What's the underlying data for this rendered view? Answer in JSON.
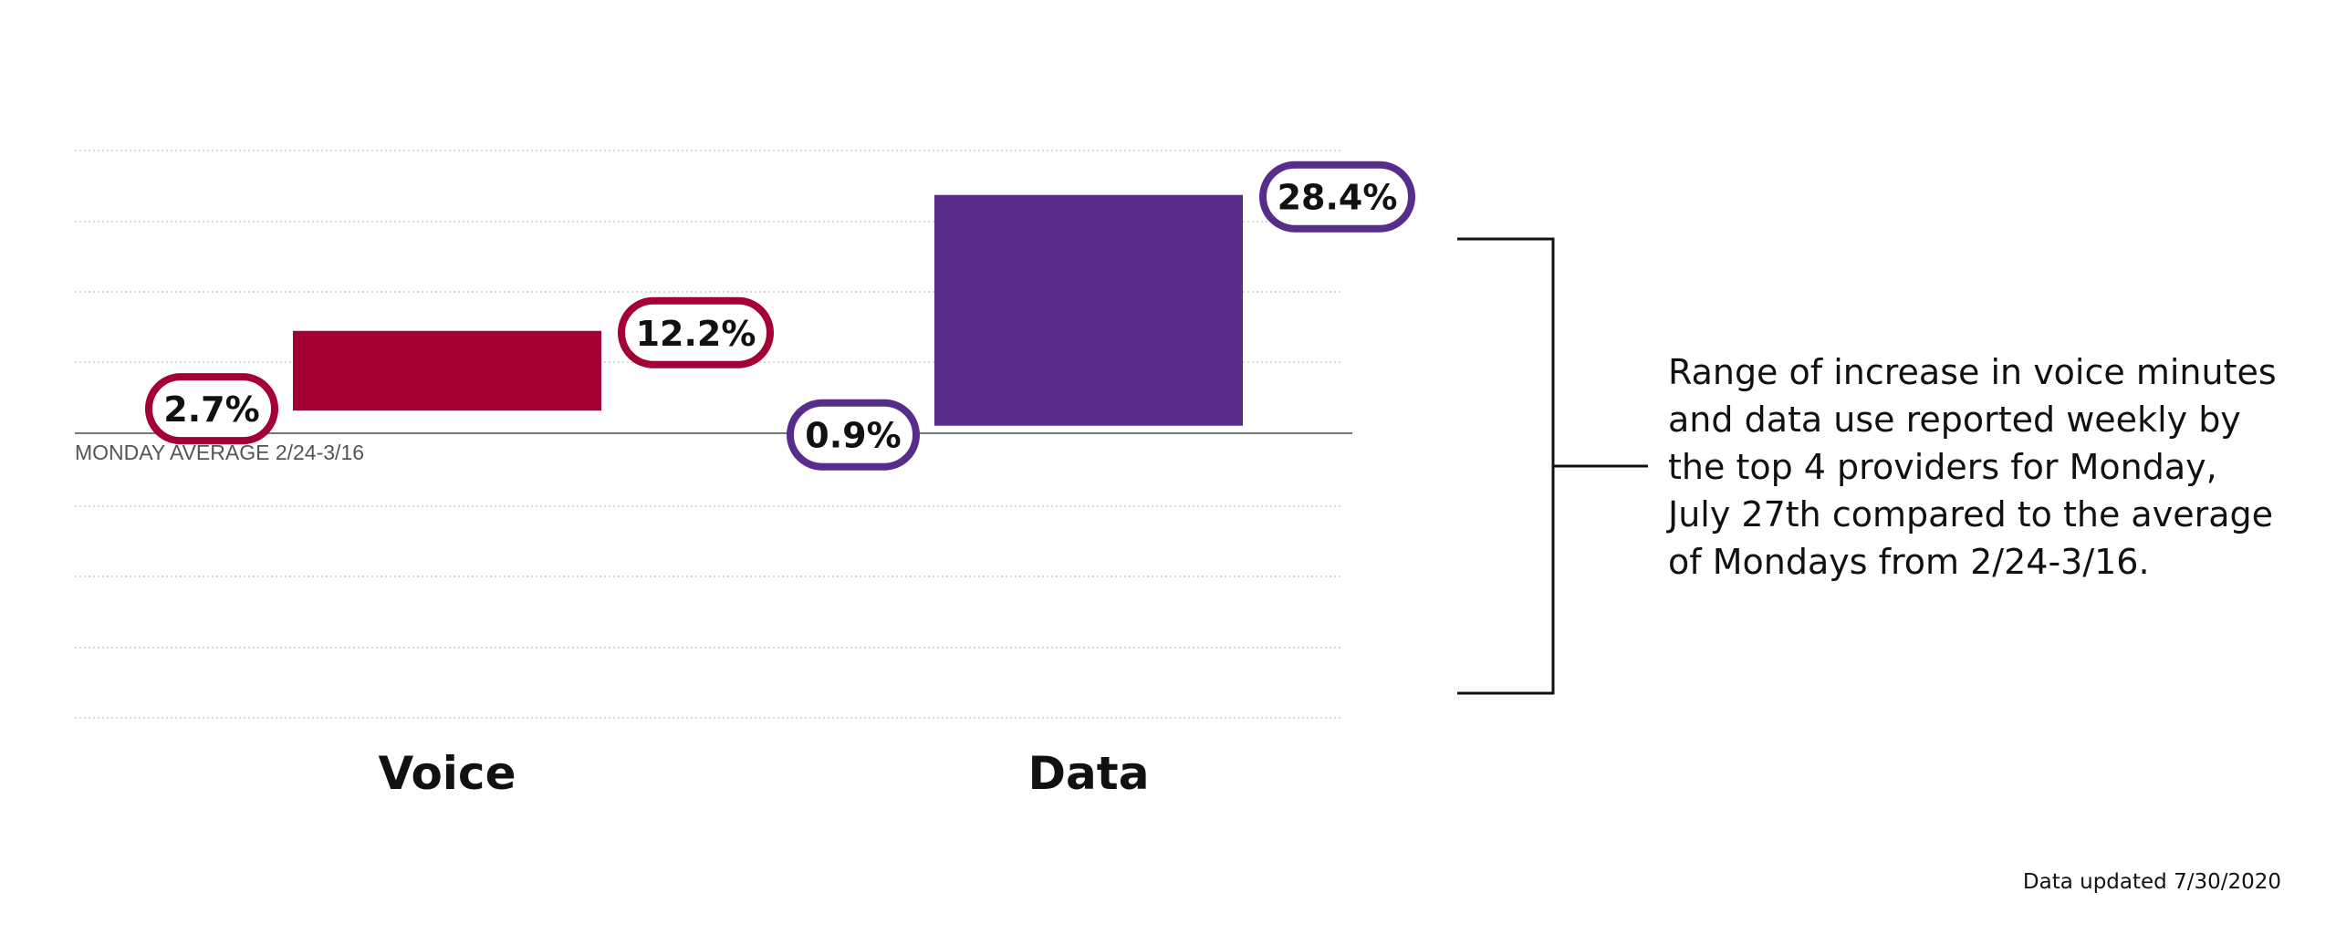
{
  "chart_data": {
    "type": "bar",
    "subtype": "floating-range",
    "categories": [
      "Voice",
      "Data"
    ],
    "series": [
      {
        "category": "Voice",
        "low": 2.7,
        "high": 12.2,
        "low_label": "2.7%",
        "high_label": "12.2%",
        "color": "#a50034"
      },
      {
        "category": "Data",
        "low": 0.9,
        "high": 28.4,
        "low_label": "0.9%",
        "high_label": "28.4%",
        "color": "#582c8b"
      }
    ],
    "baseline_label": "MONDAY AVERAGE 2/24-3/16",
    "ylim": [
      -40,
      40
    ],
    "grid": true
  },
  "annotation": {
    "text": "Range of increase in voice minutes and data use reported weekly by the top 4 providers for Monday, July 27th compared to the average of Mondays from 2/24-3/16."
  },
  "footer": {
    "updated": "Data updated 7/30/2020"
  },
  "colors": {
    "voice": "#a50034",
    "data": "#582c8b",
    "grid": "#cccccc",
    "baseline": "#777777"
  }
}
